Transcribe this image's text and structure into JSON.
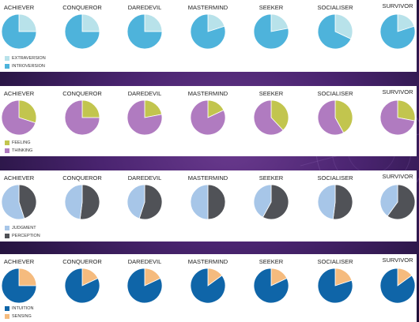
{
  "chart_data": [
    {
      "type": "pie",
      "categories": [
        "ACHIEVER",
        "CONQUEROR",
        "DAREDEVIL",
        "MASTERMIND",
        "SEEKER",
        "SOCIALISER",
        "SURVIVOR"
      ],
      "series": [
        {
          "name": "EXTRAVERSION",
          "color": "#b8e2ea",
          "values": [
            25,
            25,
            25,
            20,
            22,
            32,
            20
          ]
        },
        {
          "name": "INTROVERSION",
          "color": "#4eb3db",
          "values": [
            75,
            75,
            75,
            80,
            78,
            68,
            80
          ]
        }
      ]
    },
    {
      "type": "pie",
      "categories": [
        "ACHIEVER",
        "CONQUEROR",
        "DAREDEVIL",
        "MASTERMIND",
        "SEEKER",
        "SOCIALISER",
        "SURVIVOR"
      ],
      "series": [
        {
          "name": "FEELING",
          "color": "#c2c54e",
          "values": [
            30,
            25,
            22,
            18,
            38,
            42,
            28
          ]
        },
        {
          "name": "THINKING",
          "color": "#b07bc0",
          "values": [
            70,
            75,
            78,
            82,
            62,
            58,
            72
          ]
        }
      ]
    },
    {
      "type": "pie",
      "categories": [
        "ACHIEVER",
        "CONQUEROR",
        "DAREDEVIL",
        "MASTERMIND",
        "SEEKER",
        "SOCIALISER",
        "SURVIVOR"
      ],
      "series": [
        {
          "name": "JUDGMENT",
          "color": "#a7c6e8",
          "values": [
            55,
            48,
            45,
            50,
            42,
            48,
            40
          ]
        },
        {
          "name": "PERCEPTION",
          "color": "#505257",
          "values": [
            45,
            52,
            55,
            50,
            58,
            52,
            60
          ]
        }
      ]
    },
    {
      "type": "pie",
      "categories": [
        "ACHIEVER",
        "CONQUEROR",
        "DAREDEVIL",
        "MASTERMIND",
        "SEEKER",
        "SOCIALISER",
        "SURVIVOR"
      ],
      "series": [
        {
          "name": "INTUITION",
          "color": "#0f65a8",
          "values": [
            75,
            82,
            82,
            85,
            82,
            80,
            85
          ]
        },
        {
          "name": "SENSING",
          "color": "#f5bb7e",
          "values": [
            25,
            18,
            18,
            15,
            18,
            20,
            15
          ]
        }
      ]
    }
  ]
}
